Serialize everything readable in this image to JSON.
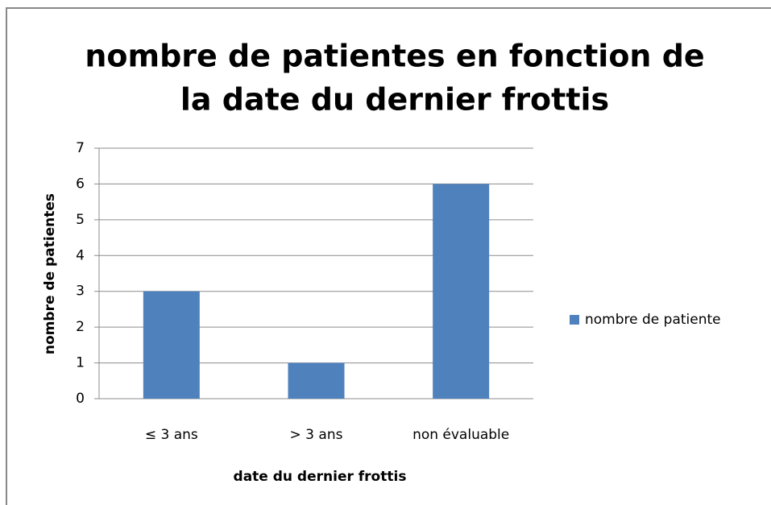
{
  "chart_data": {
    "type": "bar",
    "title": [
      "nombre de patientes en fonction de",
      "la date du dernier frottis"
    ],
    "x_label": "date du dernier frottis",
    "y_label": "nombre de patientes",
    "categories": [
      "≤ 3 ans",
      "> 3 ans",
      "non évaluable"
    ],
    "series": [
      {
        "name": "nombre de patiente",
        "color": "#4f81bd",
        "values": [
          3,
          1,
          6
        ]
      }
    ],
    "ylim": [
      0,
      7
    ],
    "yticks": [
      0,
      1,
      2,
      3,
      4,
      5,
      6,
      7
    ],
    "grid": true,
    "legend": "right"
  }
}
